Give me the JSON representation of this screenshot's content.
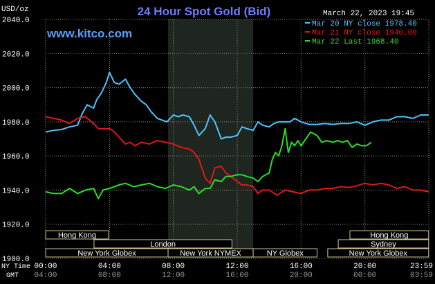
{
  "header": {
    "title": "24 Hour Spot Gold (Bid)",
    "y_unit": "USD/oz",
    "timestamp": "March 22, 2023 19:45",
    "brand": "www.kitco.com"
  },
  "colors": {
    "background": "#000000",
    "grid": "#8a8a8a",
    "title": "#6f7bff",
    "brand": "#5aa0ff",
    "axis_text": "#ffffff",
    "series_mar20": "#4fc3ff",
    "series_mar21": "#e01818",
    "series_mar22": "#28e028",
    "highlight": "#1f261f",
    "market_border": "#d2c690"
  },
  "chart_data": {
    "type": "line",
    "title": "24 Hour Spot Gold (Bid)",
    "ylabel": "USD/oz",
    "xlabel": "",
    "ylim": [
      1900,
      2040
    ],
    "y_ticks": [
      "1900.0",
      "1920.0",
      "1940.0",
      "1960.0",
      "1980.0",
      "2000.0",
      "2020.0",
      "2040.0"
    ],
    "xlim_hours": [
      0,
      24
    ],
    "x_ticks_ny": [
      "00:00",
      "04:00",
      "08:00",
      "12:00",
      "16:00",
      "20:00",
      "23:59"
    ],
    "x_ticks_gmt": [
      "04:00",
      "08:00",
      "12:00",
      "16:00",
      "20:00",
      "00:00",
      "03:59"
    ],
    "x_axis_labels": {
      "ny": "NY Time",
      "gmt": "GMT"
    },
    "grid": true,
    "legend_position": "top-right",
    "highlight_hours": [
      7.67,
      13.0
    ],
    "series": [
      {
        "name": "Mar 20 NY close 1978.40",
        "color": "#4fc3ff",
        "x": [
          0,
          0.5,
          1,
          1.5,
          2,
          2.3,
          2.6,
          3,
          3.2,
          3.5,
          3.8,
          4,
          4.3,
          4.6,
          5,
          5.3,
          5.6,
          6,
          6.3,
          6.6,
          7,
          7.3,
          7.6,
          8,
          8.3,
          8.6,
          9,
          9.3,
          9.6,
          10,
          10.3,
          10.6,
          11,
          11.3,
          11.6,
          12,
          12.3,
          12.6,
          13,
          13.3,
          13.6,
          14,
          14.3,
          14.6,
          15,
          15.3,
          15.6,
          16,
          16.5,
          17,
          17.5,
          18,
          18.5,
          19,
          19.5,
          20,
          20.5,
          21,
          21.5,
          22,
          22.5,
          23,
          23.5,
          23.99
        ],
        "y": [
          1974,
          1975,
          1975.5,
          1977,
          1978,
          1985,
          1990,
          1988,
          1993,
          1997,
          2003,
          2009,
          2003,
          2002,
          2005,
          2000,
          1996,
          1992,
          1990,
          1986,
          1982,
          1981,
          1980,
          1984,
          1983,
          1984,
          1983,
          1978,
          1972,
          1976,
          1984,
          1980,
          1970,
          1971,
          1971,
          1972,
          1977,
          1976,
          1975,
          1980,
          1978,
          1977,
          1979,
          1980,
          1980,
          1980,
          1982,
          1980,
          1978.5,
          1978.5,
          1979,
          1978.5,
          1979,
          1979,
          1980,
          1978,
          1980,
          1981,
          1981,
          1983,
          1983,
          1982,
          1984,
          1984
        ]
      },
      {
        "name": "Mar 21 NY close 1940.00",
        "color": "#e01818",
        "x": [
          0,
          0.5,
          1,
          1.5,
          2,
          2.5,
          3,
          3.3,
          3.6,
          4,
          4.3,
          4.6,
          5,
          5.3,
          5.6,
          6,
          6.5,
          7,
          7.5,
          8,
          8.5,
          9,
          9.3,
          9.6,
          10,
          10.3,
          10.6,
          11,
          11.3,
          11.6,
          12,
          12.3,
          12.6,
          13,
          13.3,
          13.6,
          14,
          14.5,
          15,
          15.5,
          16,
          16.5,
          17,
          17.5,
          18,
          18.5,
          19,
          19.5,
          20,
          20.5,
          21,
          21.5,
          22,
          22.5,
          23,
          23.5,
          23.99
        ],
        "y": [
          1983,
          1982,
          1981,
          1979,
          1982,
          1983,
          1979,
          1976,
          1976,
          1976,
          1974,
          1971,
          1967,
          1968,
          1966,
          1968,
          1967,
          1969,
          1968,
          1967,
          1965,
          1964,
          1962,
          1958,
          1947,
          1944,
          1953,
          1954,
          1950,
          1948,
          1945,
          1943,
          1943,
          1942,
          1938,
          1940,
          1940,
          1937,
          1940,
          1939,
          1938,
          1940,
          1940,
          1941,
          1941,
          1942,
          1941.5,
          1942.5,
          1944,
          1943,
          1944,
          1943,
          1941,
          1942,
          1940,
          1940,
          1939
        ]
      },
      {
        "name": "Mar 22 Last 1968.40",
        "color": "#28e028",
        "x": [
          0,
          0.5,
          1,
          1.5,
          2,
          2.5,
          3,
          3.3,
          3.6,
          4,
          4.3,
          4.6,
          5,
          5.5,
          6,
          6.5,
          7,
          7.5,
          8,
          8.5,
          9,
          9.3,
          9.6,
          10,
          10.3,
          10.6,
          11,
          11.3,
          11.6,
          12,
          12.3,
          12.6,
          13,
          13.3,
          13.6,
          14,
          14.2,
          14.4,
          14.6,
          14.8,
          15,
          15.2,
          15.4,
          15.6,
          15.8,
          16,
          16.3,
          16.6,
          17,
          17.3,
          17.6,
          18,
          18.3,
          18.6,
          18.9,
          19.2,
          19.5,
          19.8,
          20.1,
          20.4
        ],
        "y": [
          1939,
          1938,
          1938,
          1941,
          1938,
          1940,
          1941,
          1935,
          1940,
          1941,
          1942,
          1943,
          1944,
          1942,
          1943,
          1944,
          1942,
          1941,
          1943,
          1942,
          1940,
          1942,
          1938,
          1941,
          1941,
          1946,
          1945,
          1948,
          1948,
          1949,
          1949,
          1948,
          1947,
          1945,
          1948,
          1950,
          1958,
          1962,
          1960,
          1966,
          1976,
          1962,
          1968,
          1966,
          1969,
          1966,
          1970,
          1974,
          1972,
          1968,
          1969,
          1968,
          1969,
          1968,
          1969,
          1965,
          1967,
          1966,
          1966,
          1968
        ]
      }
    ],
    "markets": [
      {
        "name": "Hong Kong",
        "row": 0,
        "start": 0,
        "end": 3.94
      },
      {
        "name": "London",
        "row": 1,
        "start": 3.03,
        "end": 11.67
      },
      {
        "name": "New York Globex",
        "row": 2,
        "start": 0,
        "end": 7.67
      },
      {
        "name": "New York NYMEX",
        "row": 2,
        "start": 7.67,
        "end": 13.0
      },
      {
        "name": "NY Globex",
        "row": 2,
        "start": 13.0,
        "end": 17.0
      },
      {
        "name": "Hong Kong",
        "row": 0,
        "start": 19.06,
        "end": 23.99
      },
      {
        "name": "Sydney",
        "row": 1,
        "start": 18.33,
        "end": 23.99
      },
      {
        "name": "New York Globex",
        "row": 2,
        "start": 17.67,
        "end": 23.99
      }
    ]
  }
}
